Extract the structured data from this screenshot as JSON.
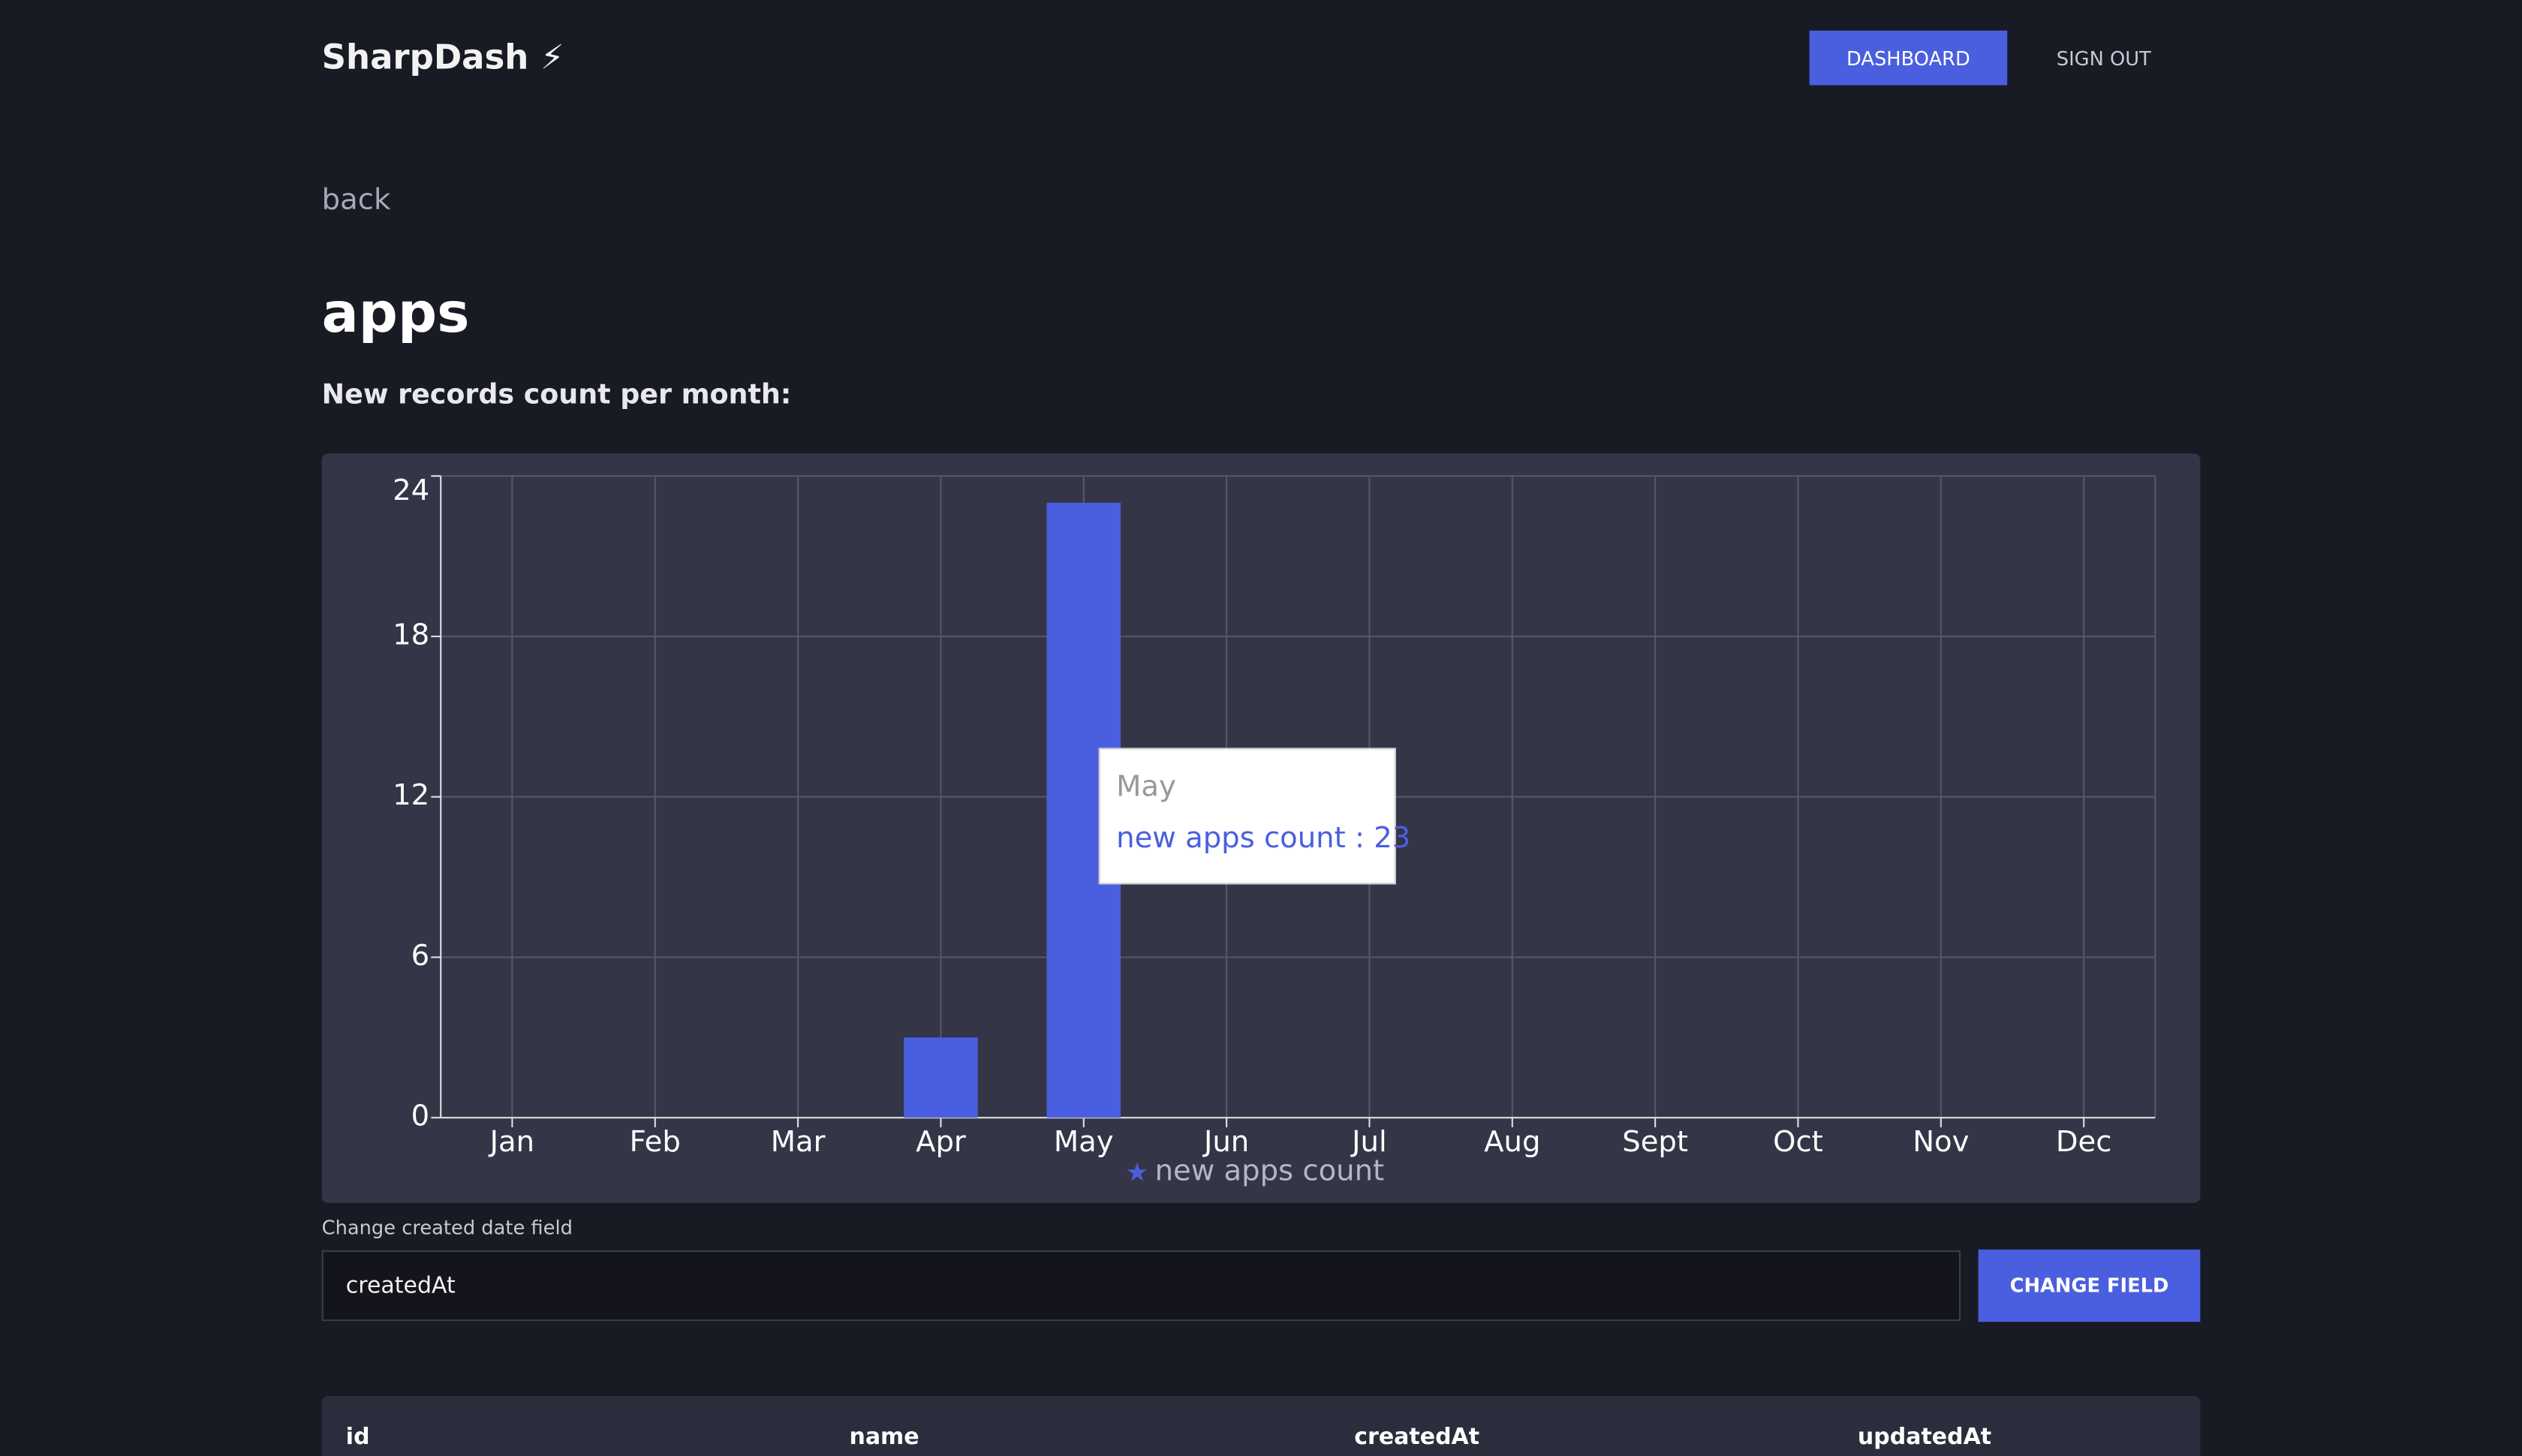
{
  "header": {
    "brand": "SharpDash ⚡",
    "nav": [
      "DASHBOARD",
      "SIGN OUT"
    ]
  },
  "back": "back",
  "heading": "apps",
  "subheading": "New records count per month:",
  "chart_data": {
    "type": "bar",
    "categories": [
      "Jan",
      "Feb",
      "Mar",
      "Apr",
      "May",
      "Jun",
      "Jul",
      "Aug",
      "Sept",
      "Oct",
      "Nov",
      "Dec"
    ],
    "series": [
      {
        "name": "new apps count",
        "color": "#4a5fdf",
        "values": [
          0,
          0,
          0,
          3,
          23,
          0,
          0,
          0,
          0,
          0,
          0,
          0
        ]
      }
    ],
    "ylim": [
      0,
      24
    ],
    "yticks": [
      0,
      6,
      12,
      18,
      24
    ],
    "grid": true,
    "legend": "bottom",
    "tooltip": {
      "title": "May",
      "text": "new apps count : 23"
    }
  },
  "form": {
    "label": "Change created date field",
    "value": "createdAt",
    "button": "CHANGE FIELD"
  },
  "table": {
    "columns": [
      "id",
      "name",
      "createdAt",
      "updatedAt"
    ]
  }
}
